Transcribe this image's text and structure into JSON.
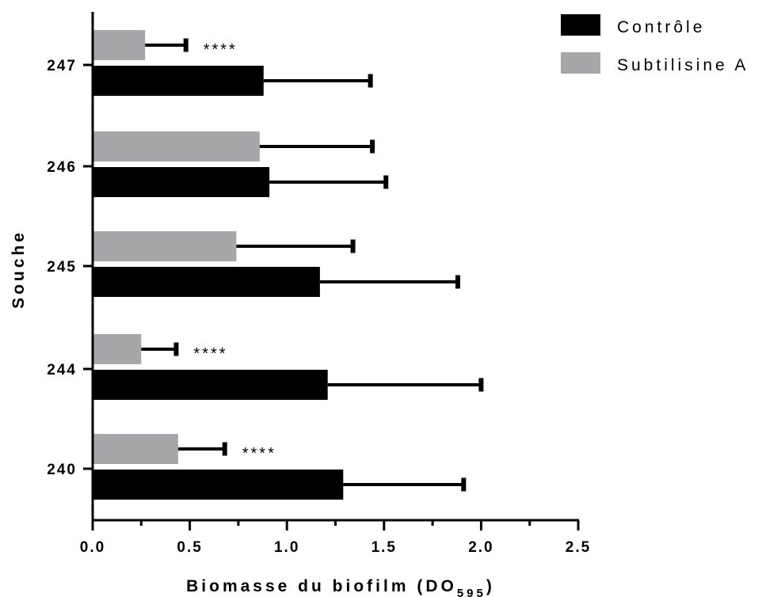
{
  "chart_data": {
    "type": "bar",
    "orientation": "horizontal",
    "xlabel": "Biomasse du biofilm (DO",
    "xlabel_sub": "595",
    "xlabel_end": ")",
    "ylabel": "Souche",
    "xlim": [
      0,
      2.5
    ],
    "x_ticks": [
      "0.0",
      "0.5",
      "1.0",
      "1.5",
      "2.0",
      "2.5"
    ],
    "categories": [
      "247",
      "246",
      "245",
      "244",
      "240"
    ],
    "series": [
      {
        "name": "Contrôle",
        "color": "#000000",
        "values": [
          0.88,
          0.91,
          1.17,
          1.21,
          1.29
        ],
        "errors": [
          0.55,
          0.6,
          0.71,
          0.79,
          0.62
        ]
      },
      {
        "name": "Subtilisine A",
        "color": "#a7a7aa",
        "values": [
          0.27,
          0.86,
          0.74,
          0.25,
          0.44
        ],
        "errors": [
          0.21,
          0.58,
          0.6,
          0.18,
          0.24
        ]
      }
    ],
    "annotations": [
      {
        "category": "247",
        "series": "Subtilisine A",
        "text": "****"
      },
      {
        "category": "244",
        "series": "Subtilisine A",
        "text": "****"
      },
      {
        "category": "240",
        "series": "Subtilisine A",
        "text": "****"
      }
    ],
    "legend": {
      "position": "top-right"
    },
    "grid": false
  }
}
